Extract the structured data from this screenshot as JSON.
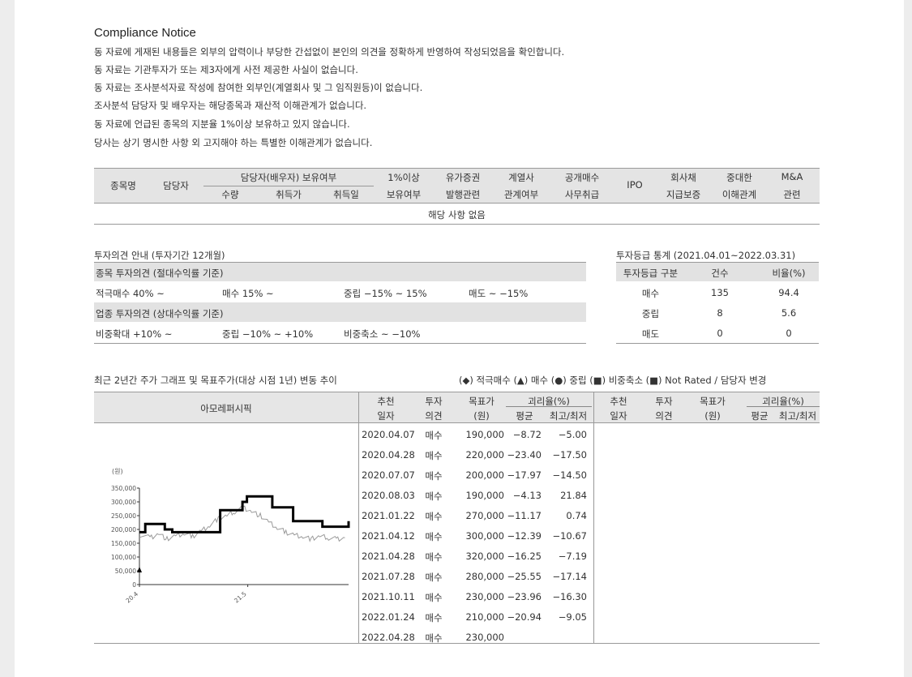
{
  "compliance": {
    "title": "Compliance Notice",
    "lines": [
      "동 자료에 게재된 내용들은 외부의 압력이나 부당한 간섭없이 본인의 의견을 정확하게 반영하여 작성되었음을 확인합니다.",
      "동 자료는 기관투자가 또는 제3자에게 사전 제공한 사실이 없습니다.",
      "동 자료는 조사분석자료 작성에 참여한 외부인(계열회사 및 그 임직원등)이 없습니다.",
      "조사분석 담당자 및 배우자는 해당종목과 재산적 이해관계가 없습니다.",
      "동 자료에 언급된 종목의 지분율 1%이상 보유하고 있지 않습니다.",
      "당사는 상기 명시한 사항 외 고지해야 하는 특별한 이해관계가 없습니다."
    ]
  },
  "disclosure_table": {
    "headers": {
      "stock": "종목명",
      "analyst": "담당자",
      "holding_group": "담당자(배우자) 보유여부",
      "qty": "수량",
      "price": "취득가",
      "date": "취득일",
      "own1_a": "1%이상",
      "own1_b": "보유여부",
      "issue_a": "유가증권",
      "issue_b": "발행관련",
      "affil_a": "계열사",
      "affil_b": "관계여부",
      "tender_a": "공개매수",
      "tender_b": "사무취급",
      "ipo": "IPO",
      "bond_a": "회사채",
      "bond_b": "지급보증",
      "interest_a": "중대한",
      "interest_b": "이해관계",
      "ma_a": "M&A",
      "ma_b": "관련"
    },
    "empty_row": "해당 사항 없음"
  },
  "rating_guide": {
    "title": "투자의견 안내 (투자기간 12개월)",
    "stock_header": "종목 투자의견 (절대수익률 기준)",
    "stock_items": [
      "적극매수 40% ~",
      "매수 15% ~",
      "중립 −15% ~ 15%",
      "매도 ~ −15%"
    ],
    "sector_header": "업종 투자의견 (상대수익률 기준)",
    "sector_items": [
      "비중확대 +10% ~",
      "중립 −10% ~ +10%",
      "비중축소 ~ −10%"
    ]
  },
  "rating_stats": {
    "title": "투자등급 통계 (2021.04.01~2022.03.31)",
    "headers": [
      "투자등급 구분",
      "건수",
      "비율(%)"
    ],
    "rows": [
      [
        "매수",
        "135",
        "94.4"
      ],
      [
        "중립",
        "8",
        "5.6"
      ],
      [
        "매도",
        "0",
        "0"
      ]
    ]
  },
  "history": {
    "title": "최근 2년간 주가 그래프 및 목표주가(대상 시점 1년) 변동 추이",
    "legend": "(◆) 적극매수 (▲) 매수 (●) 중립 (■) 비중축소 (■) Not Rated / 담당자 변경",
    "company": "아모레퍼시픽",
    "headers": {
      "rec_a": "추천",
      "rec_b": "일자",
      "op_a": "투자",
      "op_b": "의견",
      "tp_a": "목표가",
      "tp_b": "(원)",
      "gap": "괴리율(%)",
      "avg": "평균",
      "hl": "최고/최저"
    },
    "rows": [
      [
        "2020.04.07",
        "매수",
        "190,000",
        "−8.72",
        "−5.00"
      ],
      [
        "2020.04.28",
        "매수",
        "220,000",
        "−23.40",
        "−17.50"
      ],
      [
        "2020.07.07",
        "매수",
        "200,000",
        "−17.97",
        "−14.50"
      ],
      [
        "2020.08.03",
        "매수",
        "190,000",
        "−4.13",
        "21.84"
      ],
      [
        "2021.01.22",
        "매수",
        "270,000",
        "−11.17",
        "0.74"
      ],
      [
        "2021.04.12",
        "매수",
        "300,000",
        "−12.39",
        "−10.67"
      ],
      [
        "2021.04.28",
        "매수",
        "320,000",
        "−16.25",
        "−7.19"
      ],
      [
        "2021.07.28",
        "매수",
        "280,000",
        "−25.55",
        "−17.14"
      ],
      [
        "2021.10.11",
        "매수",
        "230,000",
        "−23.96",
        "−16.30"
      ],
      [
        "2022.01.24",
        "매수",
        "210,000",
        "−20.94",
        "−9.05"
      ],
      [
        "2022.04.28",
        "매수",
        "230,000",
        "",
        ""
      ]
    ]
  },
  "chart_data": {
    "type": "line",
    "ylabel": "(원)",
    "ylim": [
      0,
      350000
    ],
    "yticks": [
      "350,000",
      "300,000",
      "250,000",
      "200,000",
      "150,000",
      "100,000",
      "50,000",
      "0"
    ],
    "xticks": [
      "20.4",
      "21.5"
    ],
    "series": [
      {
        "values_tp": [
          [
            "2020.04.07",
            190000
          ],
          [
            "2020.04.28",
            220000
          ],
          [
            "2020.07.07",
            200000
          ],
          [
            "2020.08.03",
            190000
          ],
          [
            "2021.01.22",
            270000
          ],
          [
            "2021.04.12",
            300000
          ],
          [
            "2021.04.28",
            320000
          ],
          [
            "2021.07.28",
            280000
          ],
          [
            "2021.10.11",
            230000
          ],
          [
            "2022.01.24",
            210000
          ],
          [
            "2022.04.28",
            230000
          ]
        ]
      },
      {
        "values_price": [
          [
            "2020.04.07",
            180000
          ],
          [
            "2020.05.15",
            170000
          ],
          [
            "2020.06.15",
            185000
          ],
          [
            "2020.07.15",
            165000
          ],
          [
            "2020.08.15",
            175000
          ],
          [
            "2020.09.15",
            185000
          ],
          [
            "2020.10.15",
            175000
          ],
          [
            "2020.11.15",
            195000
          ],
          [
            "2020.12.15",
            215000
          ],
          [
            "2021.01.15",
            240000
          ],
          [
            "2021.02.15",
            250000
          ],
          [
            "2021.03.15",
            265000
          ],
          [
            "2021.04.15",
            280000
          ],
          [
            "2021.05.15",
            265000
          ],
          [
            "2021.06.15",
            250000
          ],
          [
            "2021.07.15",
            225000
          ],
          [
            "2021.08.15",
            205000
          ],
          [
            "2021.09.15",
            190000
          ],
          [
            "2021.10.15",
            180000
          ],
          [
            "2021.11.15",
            175000
          ],
          [
            "2021.12.15",
            165000
          ],
          [
            "2022.01.15",
            175000
          ],
          [
            "2022.02.15",
            170000
          ],
          [
            "2022.03.15",
            165000
          ],
          [
            "2022.04.15",
            170000
          ]
        ]
      }
    ],
    "colors": {
      "target": "#000000",
      "price": "#9a9a9a"
    }
  }
}
